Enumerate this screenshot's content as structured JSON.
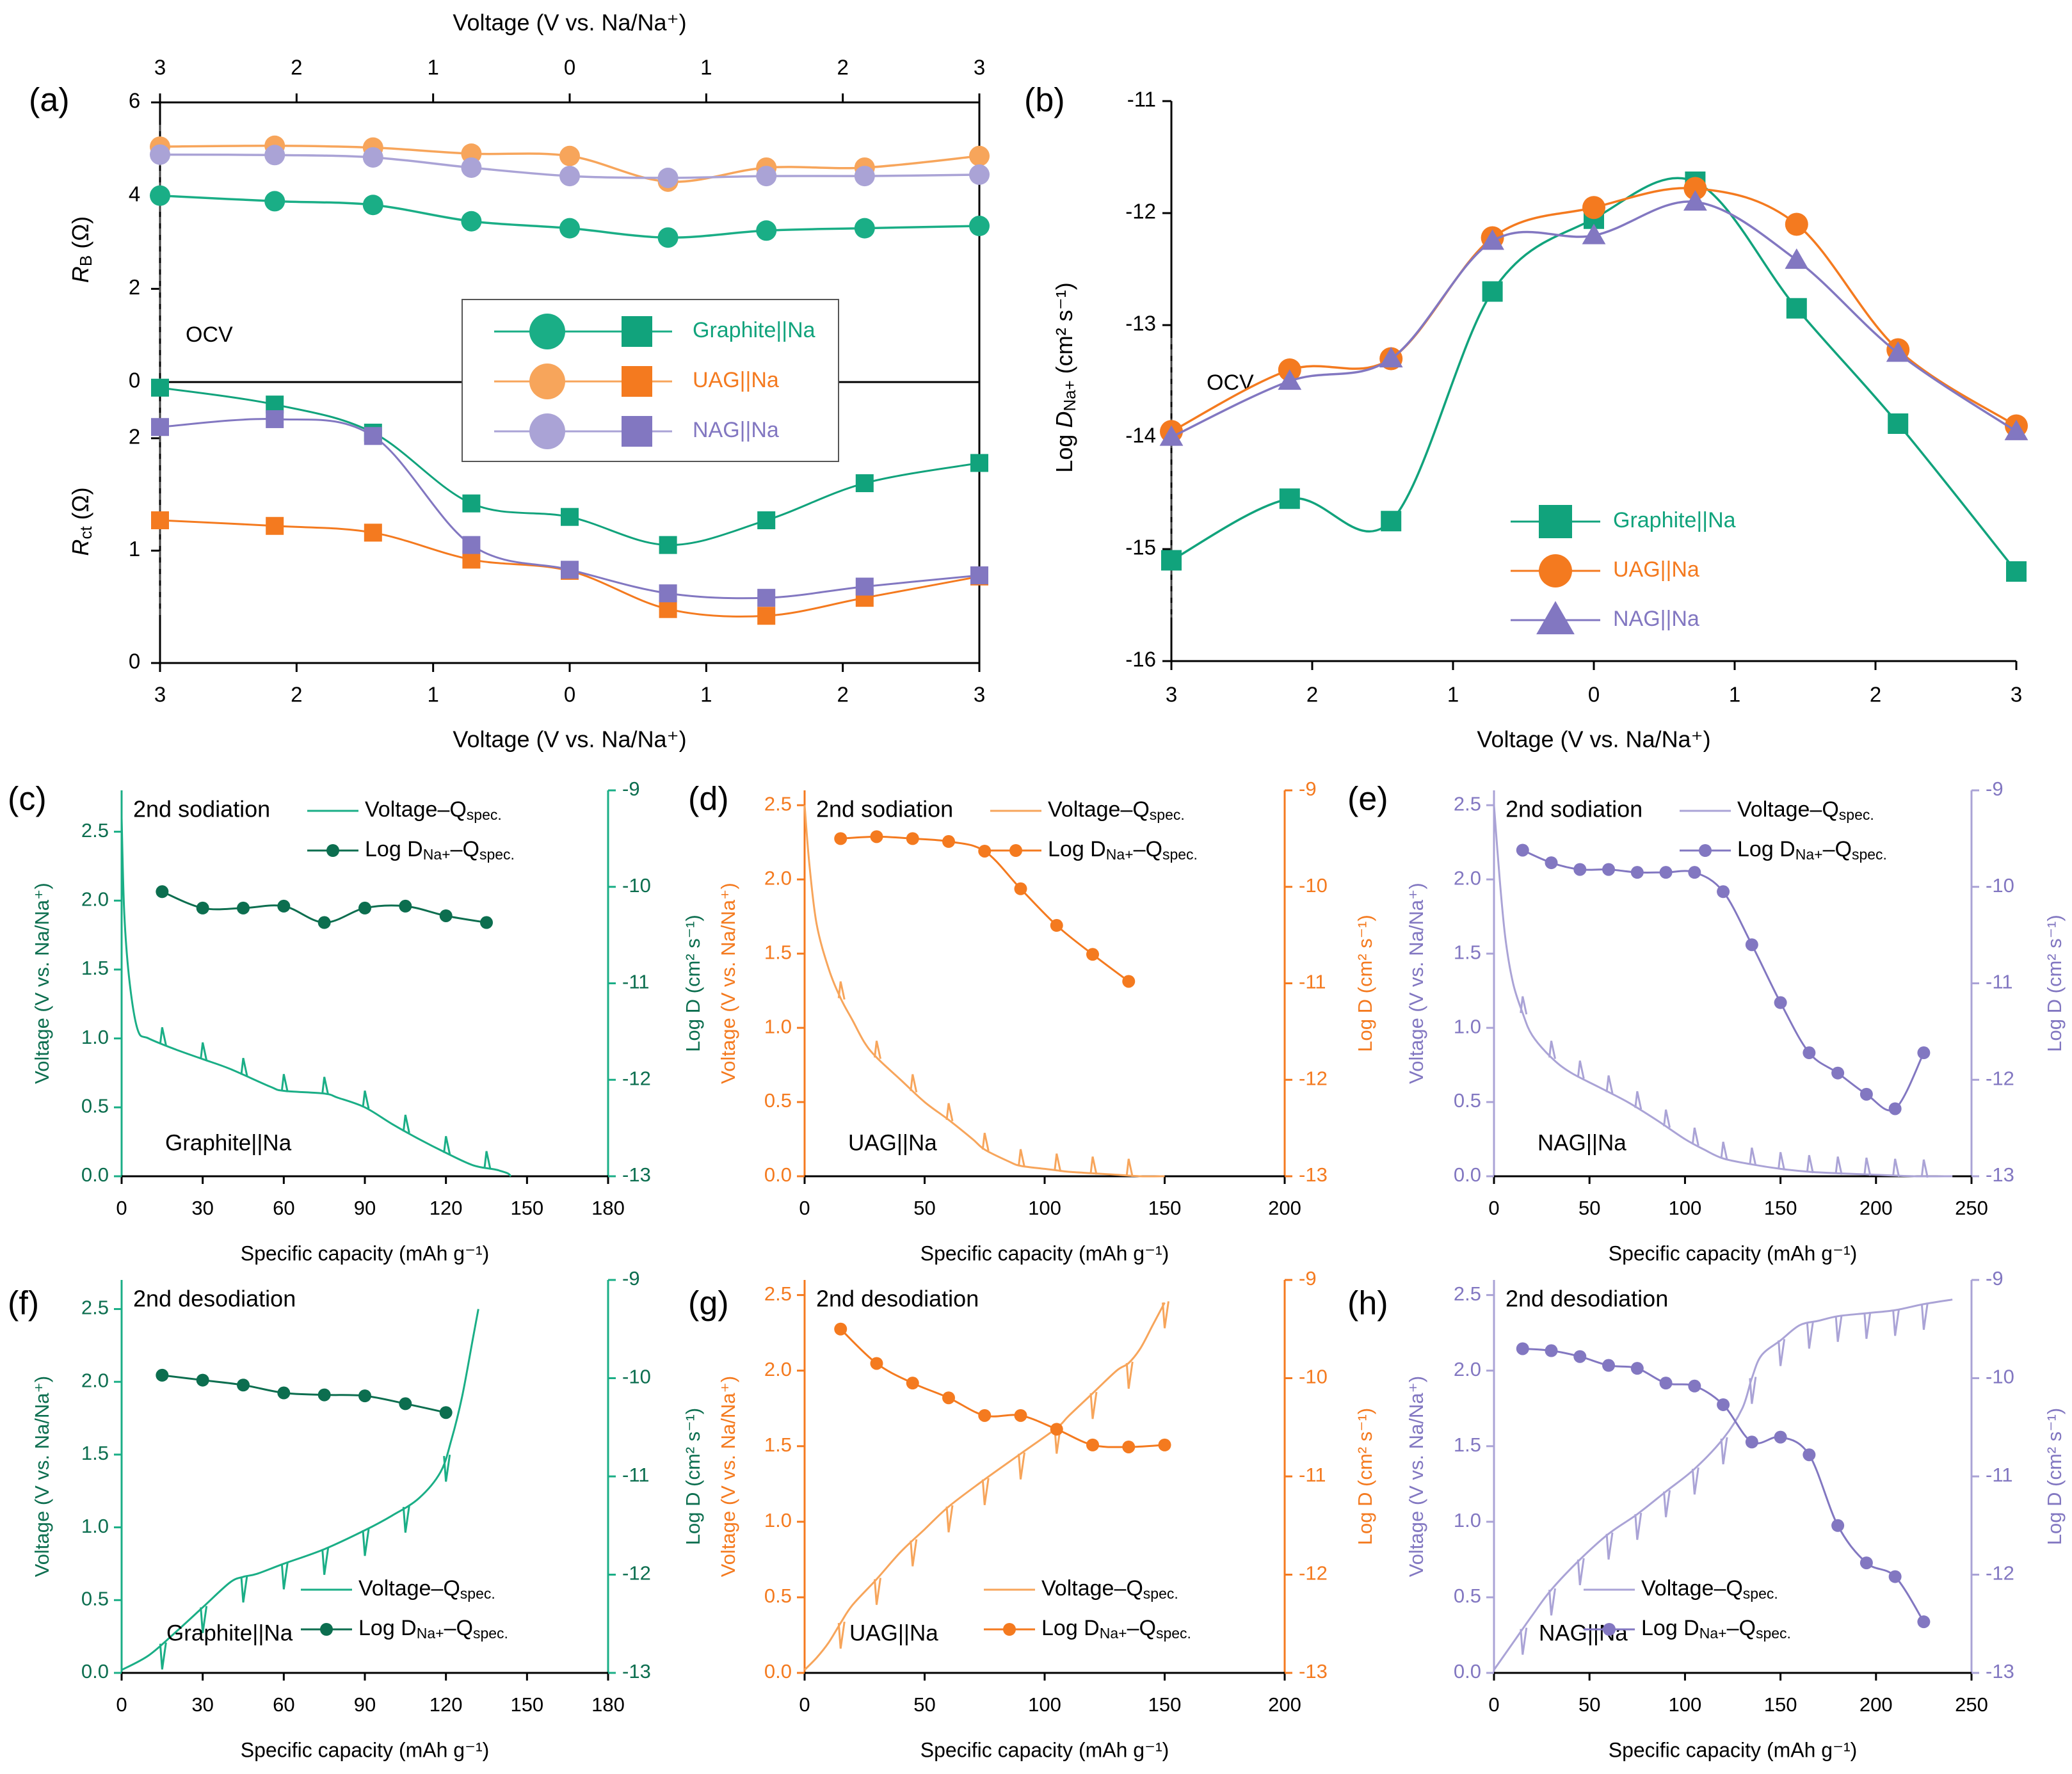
{
  "colors": {
    "graphite": "#1aae86",
    "graphite_dark": "#0c6e4f",
    "graphite_marker": "#11a37c",
    "uag": "#f47a1f",
    "uag_light": "#f7a55b",
    "nag": "#8277c1",
    "nag_light": "#aaa3d6",
    "axis": "#000000"
  },
  "chart_data": [
    {
      "panel": "a",
      "label": "(a)",
      "type": "line",
      "title": "",
      "xlabel": "Voltage (V vs. Na/Na⁺)",
      "x2label": "Voltage (V vs. Na/Na⁺)",
      "x_ticks": [
        "3",
        "2",
        "1",
        "0",
        "1",
        "2",
        "3"
      ],
      "x_top_ticks": [
        "3",
        "2",
        "1",
        "0",
        "1",
        "2",
        "3"
      ],
      "x_positions": [
        0,
        0.7,
        1.3,
        1.9,
        2.5,
        3.1,
        3.7,
        4.3,
        5.0
      ],
      "ocv_label": "OCV",
      "upper": {
        "ylabel": "R_B (Ω)",
        "ylabel_main": "R",
        "ylabel_sub": "B",
        "ylabel_unit": " (Ω)",
        "ylim": [
          0,
          6
        ],
        "yticks": [
          "0",
          "2",
          "4",
          "6"
        ],
        "series": [
          {
            "name": "Graphite||Na",
            "values": [
              4.0,
              3.88,
              3.8,
              3.45,
              3.3,
              3.1,
              3.25,
              3.3,
              3.35
            ]
          },
          {
            "name": "UAG||Na",
            "values": [
              5.05,
              5.07,
              5.03,
              4.9,
              4.85,
              4.3,
              4.6,
              4.6,
              4.85
            ]
          },
          {
            "name": "NAG||Na",
            "values": [
              4.88,
              4.87,
              4.82,
              4.6,
              4.42,
              4.38,
              4.42,
              4.42,
              4.45
            ]
          }
        ]
      },
      "lower": {
        "ylabel": "R_ct (Ω)",
        "ylabel_main": "R",
        "ylabel_sub": "ct",
        "ylabel_unit": " (Ω)",
        "ylim": [
          0,
          2.5
        ],
        "yticks": [
          "0",
          "1",
          "2"
        ],
        "series": [
          {
            "name": "Graphite||Na",
            "values": [
              2.45,
              2.3,
              2.05,
              1.42,
              1.3,
              1.05,
              1.27,
              1.6,
              1.78
            ]
          },
          {
            "name": "UAG||Na",
            "values": [
              1.27,
              1.22,
              1.16,
              0.92,
              0.82,
              0.48,
              0.42,
              0.58,
              0.77
            ]
          },
          {
            "name": "NAG||Na",
            "values": [
              2.1,
              2.17,
              2.02,
              1.05,
              0.83,
              0.62,
              0.58,
              0.68,
              0.78
            ]
          }
        ]
      },
      "legend": [
        "Graphite||Na",
        "UAG||Na",
        "NAG||Na"
      ]
    },
    {
      "panel": "b",
      "label": "(b)",
      "type": "line",
      "xlabel": "Voltage (V vs. Na/Na⁺)",
      "ylabel": "Log D_Na+ (cm² s⁻¹)",
      "ylabel_pre": "Log ",
      "ylabel_main": "D",
      "ylabel_sub": "Na+",
      "ylabel_unit": " (cm² s⁻¹)",
      "x_ticks": [
        "3",
        "2",
        "1",
        "0",
        "1",
        "2",
        "3"
      ],
      "x_positions": [
        0,
        0.7,
        1.3,
        1.9,
        2.5,
        3.1,
        3.7,
        4.3,
        5.0
      ],
      "ylim": [
        -16,
        -11
      ],
      "yticks": [
        "-16",
        "-15",
        "-14",
        "-13",
        "-12",
        "-11"
      ],
      "ocv_label": "OCV",
      "series": [
        {
          "name": "Graphite||Na",
          "values": [
            -15.1,
            -14.55,
            -14.75,
            -12.7,
            -12.05,
            -11.72,
            -12.85,
            -13.88,
            -15.2
          ]
        },
        {
          "name": "UAG||Na",
          "values": [
            -13.95,
            -13.4,
            -13.3,
            -12.22,
            -11.95,
            -11.78,
            -12.1,
            -13.22,
            -13.9
          ]
        },
        {
          "name": "NAG||Na",
          "values": [
            -14.0,
            -13.5,
            -13.3,
            -12.25,
            -12.2,
            -11.9,
            -12.42,
            -13.25,
            -13.95
          ]
        }
      ],
      "legend": [
        "Graphite||Na",
        "UAG||Na",
        "NAG||Na"
      ]
    },
    {
      "panel": "c",
      "label": "(c)",
      "type": "line",
      "cell": "Graphite||Na",
      "title": "2nd sodiation",
      "series_color": "graphite",
      "xlabel": "Specific capacity (mAh g⁻¹)",
      "xlim": [
        0,
        180
      ],
      "xticks": [
        0,
        30,
        60,
        90,
        120,
        150,
        180
      ],
      "ylabel_left": "Voltage (V vs. Na/Na⁺)",
      "ylim_left": [
        0,
        2.8
      ],
      "yticks_left": [
        "0.0",
        "0.5",
        "1.0",
        "1.5",
        "2.0",
        "2.5"
      ],
      "ylabel_right": "Log D (cm² s⁻¹)",
      "ylim_right": [
        -13,
        -9
      ],
      "yticks_right": [
        "-13",
        "-12",
        "-11",
        "-10",
        "-9"
      ],
      "legend": [
        "Voltage–Q",
        "Log D",
        "Na+",
        "–Q",
        "spec."
      ],
      "voltage": {
        "x": [
          0,
          1,
          3,
          6,
          10,
          20,
          30,
          40,
          55,
          60,
          75,
          80,
          90,
          100,
          110,
          120,
          130,
          138,
          140,
          143,
          144
        ],
        "y": [
          2.6,
          1.9,
          1.4,
          1.06,
          1.0,
          0.92,
          0.85,
          0.78,
          0.65,
          0.62,
          0.6,
          0.57,
          0.5,
          0.38,
          0.27,
          0.17,
          0.08,
          0.05,
          0.04,
          0.02,
          0.0
        ]
      },
      "logD": {
        "x": [
          15,
          30,
          45,
          60,
          75,
          90,
          105,
          120,
          135
        ],
        "y": [
          -10.05,
          -10.22,
          -10.22,
          -10.2,
          -10.37,
          -10.22,
          -10.2,
          -10.3,
          -10.37
        ]
      }
    },
    {
      "panel": "d",
      "label": "(d)",
      "type": "line",
      "cell": "UAG||Na",
      "title": "2nd sodiation",
      "series_color": "uag",
      "xlabel": "Specific capacity (mAh g⁻¹)",
      "xlim": [
        0,
        200
      ],
      "xticks": [
        0,
        50,
        100,
        150,
        200
      ],
      "ylabel_left": "Voltage (V vs. Na/Na⁺)",
      "ylim_left": [
        0,
        2.6
      ],
      "yticks_left": [
        "0.0",
        "0.5",
        "1.0",
        "1.5",
        "2.0",
        "2.5"
      ],
      "ylabel_right": "Log D (cm² s⁻¹)",
      "ylim_right": [
        -13,
        -9
      ],
      "yticks_right": [
        "-13",
        "-12",
        "-11",
        "-10",
        "-9"
      ],
      "legend": [
        "Voltage–Q",
        "Log D",
        "Na+",
        "–Q",
        "spec."
      ],
      "voltage": {
        "x": [
          0,
          2,
          5,
          10,
          15,
          20,
          25,
          30,
          40,
          50,
          60,
          70,
          75,
          85,
          90,
          100,
          105,
          110,
          120,
          130,
          140,
          150
        ],
        "y": [
          2.5,
          2.1,
          1.7,
          1.4,
          1.2,
          1.05,
          0.9,
          0.8,
          0.65,
          0.5,
          0.38,
          0.25,
          0.18,
          0.1,
          0.07,
          0.05,
          0.04,
          0.03,
          0.02,
          0.01,
          0.0,
          0.0
        ]
      },
      "logD": {
        "x": [
          15,
          30,
          45,
          60,
          75,
          90,
          105,
          120,
          135
        ],
        "y": [
          -9.5,
          -9.48,
          -9.5,
          -9.53,
          -9.63,
          -10.02,
          -10.4,
          -10.7,
          -10.98
        ]
      }
    },
    {
      "panel": "e",
      "label": "(e)",
      "type": "line",
      "cell": "NAG||Na",
      "title": "2nd sodiation",
      "series_color": "nag",
      "xlabel": "Specific capacity (mAh g⁻¹)",
      "xlim": [
        0,
        250
      ],
      "xticks": [
        0,
        50,
        100,
        150,
        200,
        250
      ],
      "ylabel_left": "Voltage (V vs. Na/Na⁺)",
      "ylim_left": [
        0,
        2.6
      ],
      "yticks_left": [
        "0.0",
        "0.5",
        "1.0",
        "1.5",
        "2.0",
        "2.5"
      ],
      "ylabel_right": "Log D (cm² s⁻¹)",
      "ylim_right": [
        -13,
        -9
      ],
      "yticks_right": [
        "-13",
        "-12",
        "-11",
        "-10",
        "-9"
      ],
      "legend": [
        "Voltage–Q",
        "Log D",
        "Na+",
        "–Q",
        "spec."
      ],
      "voltage": {
        "x": [
          0,
          3,
          6,
          10,
          15,
          20,
          30,
          40,
          55,
          70,
          85,
          100,
          110,
          120,
          135,
          150,
          165,
          180,
          200,
          220,
          240
        ],
        "y": [
          2.5,
          2.0,
          1.6,
          1.3,
          1.1,
          0.95,
          0.8,
          0.7,
          0.6,
          0.5,
          0.38,
          0.25,
          0.18,
          0.12,
          0.08,
          0.05,
          0.03,
          0.02,
          0.01,
          0.0,
          0.0
        ]
      },
      "logD": {
        "x": [
          15,
          30,
          45,
          60,
          75,
          90,
          105,
          120,
          135,
          150,
          165,
          180,
          195,
          210,
          225
        ],
        "y": [
          -9.62,
          -9.75,
          -9.82,
          -9.82,
          -9.85,
          -9.85,
          -9.85,
          -10.05,
          -10.6,
          -11.2,
          -11.72,
          -11.93,
          -12.15,
          -12.3,
          -11.72
        ]
      }
    },
    {
      "panel": "f",
      "label": "(f)",
      "type": "line",
      "cell": "Graphite||Na",
      "title": "2nd desodiation",
      "series_color": "graphite",
      "xlabel": "Specific capacity (mAh g⁻¹)",
      "xlim": [
        0,
        180
      ],
      "xticks": [
        0,
        30,
        60,
        90,
        120,
        150,
        180
      ],
      "ylabel_left": "Voltage (V vs. Na/Na⁺)",
      "ylim_left": [
        0,
        2.7
      ],
      "yticks_left": [
        "0.0",
        "0.5",
        "1.0",
        "1.5",
        "2.0",
        "2.5"
      ],
      "ylabel_right": "Log D (cm² s⁻¹)",
      "ylim_right": [
        -13,
        -9
      ],
      "yticks_right": [
        "-13",
        "-12",
        "-11",
        "-10",
        "-9"
      ],
      "legend": [
        "Voltage–Q",
        "Log D",
        "Na+",
        "–Q",
        "spec."
      ],
      "voltage": {
        "x": [
          0,
          10,
          20,
          30,
          40,
          45,
          50,
          60,
          75,
          90,
          100,
          110,
          118,
          122,
          126,
          130,
          132
        ],
        "y": [
          0.02,
          0.12,
          0.28,
          0.45,
          0.62,
          0.66,
          0.68,
          0.75,
          0.85,
          0.98,
          1.08,
          1.2,
          1.38,
          1.6,
          1.9,
          2.3,
          2.5
        ]
      },
      "logD": {
        "x": [
          15,
          30,
          45,
          60,
          75,
          90,
          105,
          120
        ],
        "y": [
          -9.97,
          -10.02,
          -10.07,
          -10.15,
          -10.17,
          -10.18,
          -10.26,
          -10.35
        ]
      }
    },
    {
      "panel": "g",
      "label": "(g)",
      "type": "line",
      "cell": "UAG||Na",
      "title": "2nd desodiation",
      "series_color": "uag",
      "xlabel": "Specific capacity (mAh g⁻¹)",
      "xlim": [
        0,
        200
      ],
      "xticks": [
        0,
        50,
        100,
        150,
        200
      ],
      "ylabel_left": "Voltage (V vs. Na/Na⁺)",
      "ylim_left": [
        0,
        2.6
      ],
      "yticks_left": [
        "0.0",
        "0.5",
        "1.0",
        "1.5",
        "2.0",
        "2.5"
      ],
      "ylabel_right": "Log D (cm² s⁻¹)",
      "ylim_right": [
        -13,
        -9
      ],
      "yticks_right": [
        "-13",
        "-12",
        "-11",
        "-10",
        "-9"
      ],
      "legend": [
        "Voltage–Q",
        "Log D",
        "Na+",
        "–Q",
        "spec."
      ],
      "voltage": {
        "x": [
          0,
          5,
          10,
          15,
          20,
          30,
          40,
          50,
          60,
          75,
          90,
          105,
          110,
          120,
          130,
          135,
          140,
          145,
          150
        ],
        "y": [
          0.02,
          0.1,
          0.2,
          0.33,
          0.45,
          0.62,
          0.8,
          0.95,
          1.1,
          1.28,
          1.45,
          1.62,
          1.7,
          1.85,
          2.0,
          2.05,
          2.15,
          2.3,
          2.45
        ]
      },
      "logD": {
        "x": [
          15,
          30,
          45,
          60,
          75,
          90,
          105,
          120,
          135,
          150
        ],
        "y": [
          -9.5,
          -9.85,
          -10.05,
          -10.2,
          -10.38,
          -10.38,
          -10.52,
          -10.68,
          -10.7,
          -10.68
        ]
      }
    },
    {
      "panel": "h",
      "label": "(h)",
      "type": "line",
      "cell": "NAG||Na",
      "title": "2nd desodiation",
      "series_color": "nag",
      "xlabel": "Specific capacity (mAh g⁻¹)",
      "xlim": [
        0,
        250
      ],
      "xticks": [
        0,
        50,
        100,
        150,
        200,
        250
      ],
      "ylabel_left": "Voltage (V vs. Na/Na⁺)",
      "ylim_left": [
        0,
        2.6
      ],
      "yticks_left": [
        "0.0",
        "0.5",
        "1.0",
        "1.5",
        "2.0",
        "2.5"
      ],
      "ylabel_right": "Log D (cm² s⁻¹)",
      "ylim_right": [
        -13,
        -9
      ],
      "yticks_right": [
        "-13",
        "-12",
        "-11",
        "-10",
        "-9"
      ],
      "legend": [
        "Voltage–Q",
        "Log D",
        "Na+",
        "–Q",
        "spec."
      ],
      "voltage": {
        "x": [
          0,
          10,
          20,
          30,
          45,
          60,
          75,
          90,
          105,
          120,
          130,
          135,
          140,
          150,
          160,
          170,
          180,
          195,
          210,
          225,
          240
        ],
        "y": [
          0.02,
          0.2,
          0.38,
          0.55,
          0.75,
          0.92,
          1.05,
          1.2,
          1.35,
          1.55,
          1.75,
          1.95,
          2.1,
          2.2,
          2.3,
          2.33,
          2.36,
          2.38,
          2.4,
          2.44,
          2.47
        ]
      },
      "logD": {
        "x": [
          15,
          30,
          45,
          60,
          75,
          90,
          105,
          120,
          135,
          150,
          165,
          180,
          195,
          210,
          225
        ],
        "y": [
          -9.7,
          -9.72,
          -9.78,
          -9.87,
          -9.9,
          -10.05,
          -10.08,
          -10.27,
          -10.65,
          -10.6,
          -10.78,
          -11.5,
          -11.88,
          -12.02,
          -12.48
        ]
      }
    }
  ]
}
